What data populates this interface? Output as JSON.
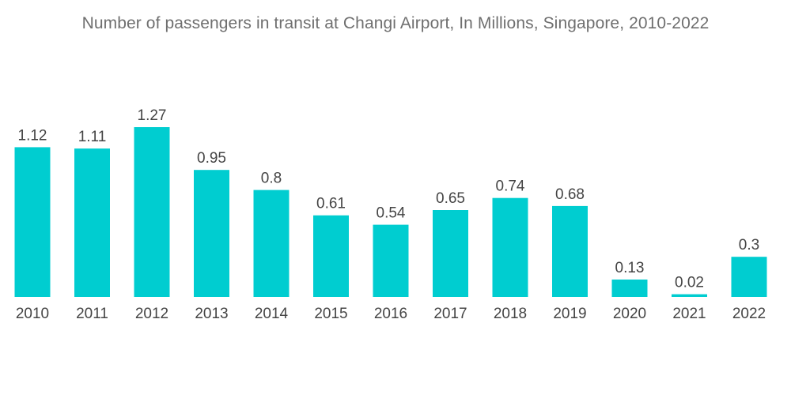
{
  "chart_data": {
    "type": "bar",
    "title": "Number of passengers in transit at Changi Airport, In Millions, Singapore, 2010-2022",
    "categories": [
      "2010",
      "2011",
      "2012",
      "2013",
      "2014",
      "2015",
      "2016",
      "2017",
      "2018",
      "2019",
      "2020",
      "2021",
      "2022"
    ],
    "values": [
      1.12,
      1.11,
      1.27,
      0.95,
      0.8,
      0.61,
      0.54,
      0.65,
      0.74,
      0.68,
      0.13,
      0.02,
      0.3
    ],
    "value_labels": [
      "1.12",
      "1.11",
      "1.27",
      "0.95",
      "0.8",
      "0.61",
      "0.54",
      "0.65",
      "0.74",
      "0.68",
      "0.13",
      "0.02",
      "0.3"
    ],
    "xlabel": "",
    "ylabel": "",
    "ylim": [
      0,
      1.27
    ],
    "grid": false,
    "legend": "none",
    "bar_color": "#00cdd0"
  }
}
